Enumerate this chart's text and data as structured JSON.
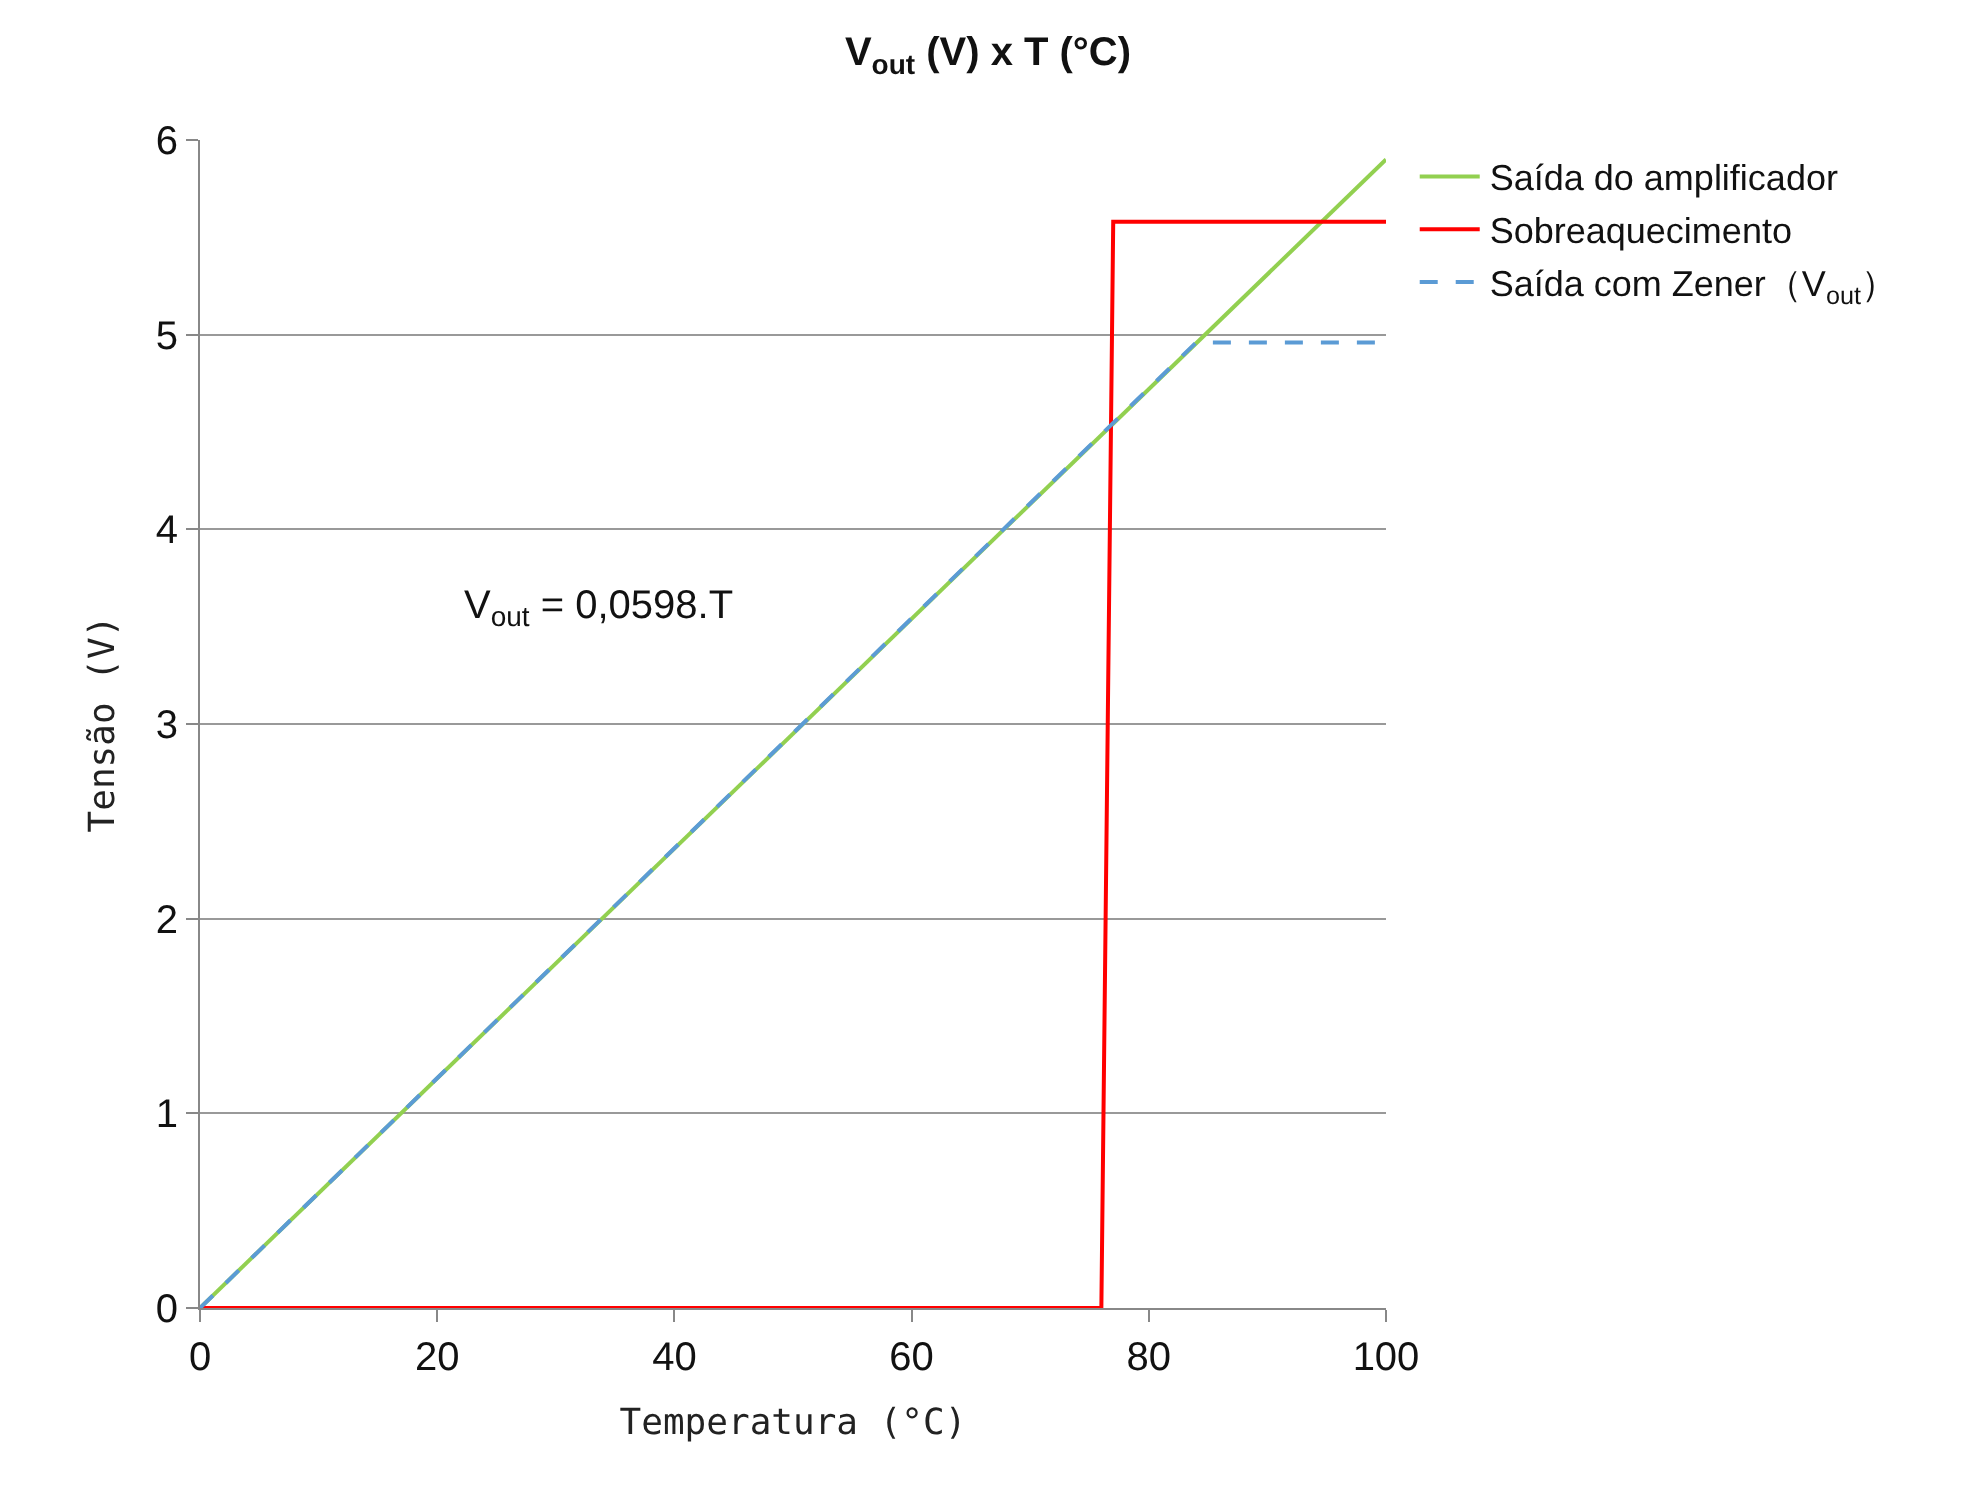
{
  "chart_data": {
    "type": "line",
    "title": "V$_{out}$ (V) x T (°C)",
    "xlabel": "Temperatura (°C)",
    "ylabel": "Tensão (V)",
    "series": [
      {
        "name": "Saída do amplificador",
        "color": "#92d050",
        "x": [
          0,
          100
        ],
        "values": [
          0,
          5.9
        ],
        "line_style": "solid"
      },
      {
        "name": "Sobreaquecimento",
        "color": "#ff0000",
        "x": [
          0,
          76,
          77,
          100
        ],
        "values": [
          0,
          0,
          5.58,
          5.58
        ],
        "line_style": "solid"
      },
      {
        "name": "Saída com Zener（V$_{out}$）",
        "color": "#5b9bd5",
        "x": [
          0,
          84,
          100
        ],
        "values": [
          0,
          4.96,
          4.96
        ],
        "line_style": "dashed"
      }
    ],
    "annotations": [
      "V$_{out}$ = 0,0598.T"
    ],
    "xlim": [
      0,
      100
    ],
    "xticks": [
      0,
      20,
      40,
      60,
      80,
      100
    ],
    "ylim": [
      0,
      6
    ],
    "yticks": [
      0,
      1,
      2,
      3,
      4,
      5,
      6
    ],
    "grid": "y",
    "legend": "top right",
    "marker": "none"
  }
}
